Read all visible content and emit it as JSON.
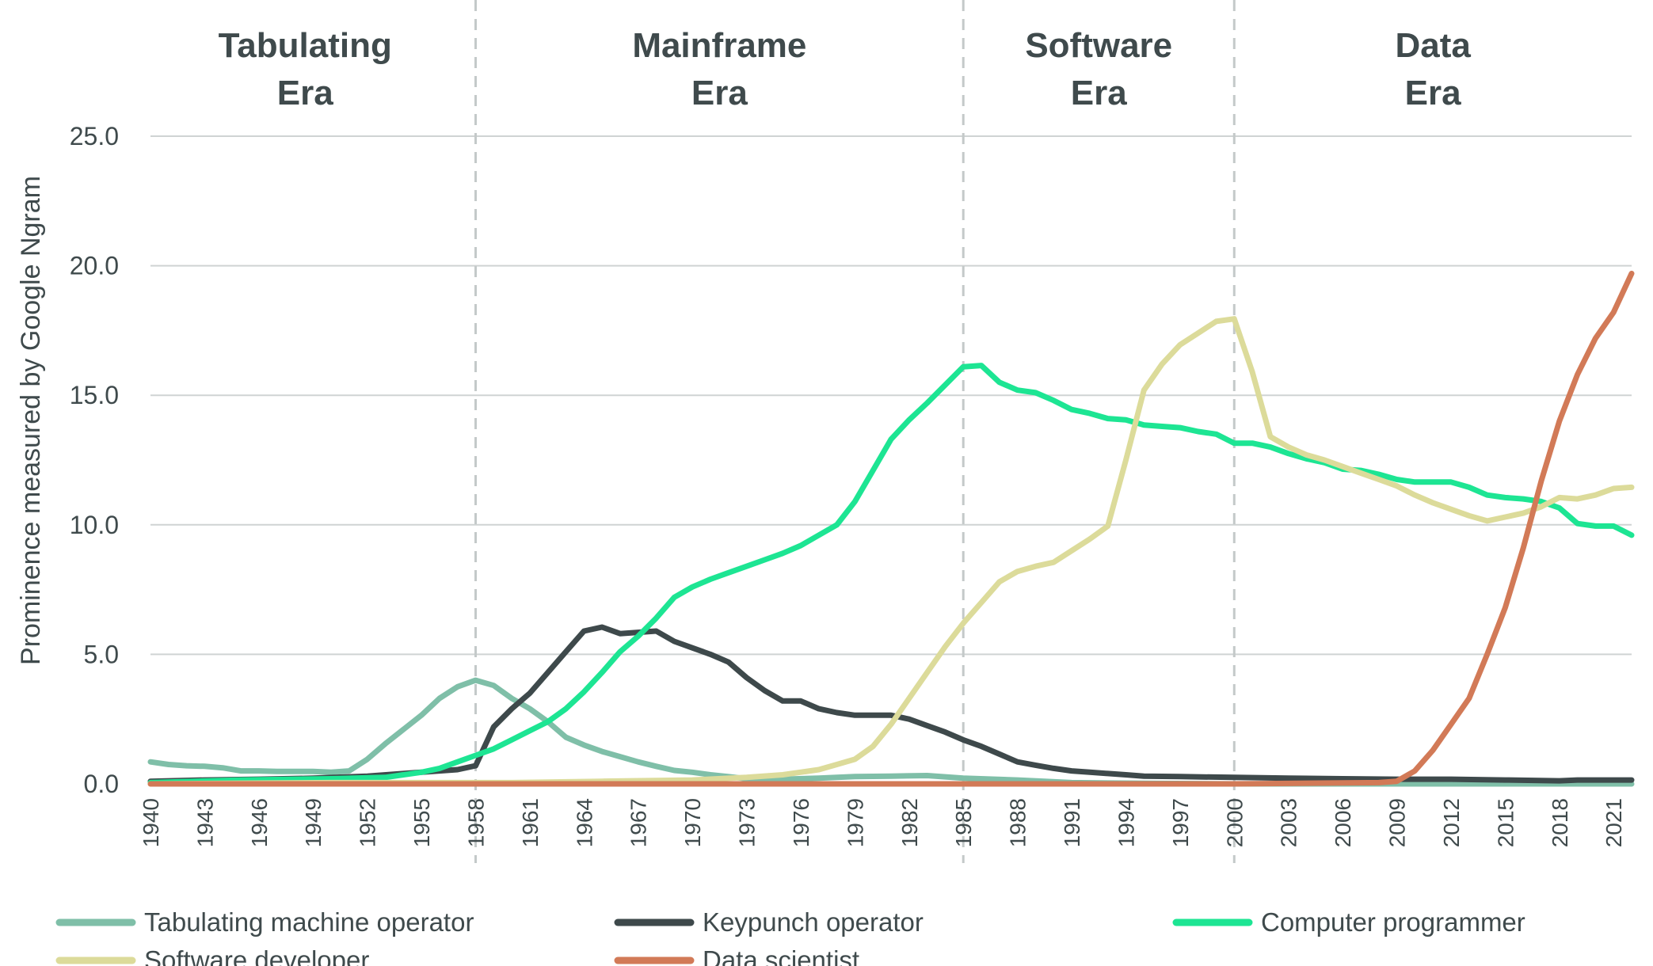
{
  "chart_data": {
    "type": "line",
    "title": "",
    "xlabel": "",
    "ylabel": "Prominence measured by Google Ngram",
    "xlim": [
      1940,
      2022
    ],
    "ylim": [
      0,
      25
    ],
    "yticks": [
      0,
      5,
      10,
      15,
      20,
      25
    ],
    "ytick_labels": [
      "0.0",
      "5.0",
      "10.0",
      "15.0",
      "20.0",
      "25.0"
    ],
    "xticks": [
      1940,
      1943,
      1946,
      1949,
      1952,
      1955,
      1958,
      1961,
      1964,
      1967,
      1970,
      1973,
      1976,
      1979,
      1982,
      1985,
      1988,
      1991,
      1994,
      1997,
      2000,
      2003,
      2006,
      2009,
      2012,
      2015,
      2018,
      2021
    ],
    "xtick_labels": [
      "1940",
      "1943",
      "1946",
      "1949",
      "1952",
      "1955",
      "1958",
      "1961",
      "1964",
      "1967",
      "1970",
      "1973",
      "1976",
      "1979",
      "1982",
      "1985",
      "1988",
      "1991",
      "1994",
      "1997",
      "2000",
      "2003",
      "2006",
      "2009",
      "2012",
      "2015",
      "2018",
      "2021"
    ],
    "grid": true,
    "legend_position": "bottom",
    "eras": [
      {
        "line1": "Tabulating",
        "line2": "Era",
        "start": 1940,
        "end": 1958
      },
      {
        "line1": "Mainframe",
        "line2": "Era",
        "start": 1958,
        "end": 1985
      },
      {
        "line1": "Software",
        "line2": "Era",
        "start": 1985,
        "end": 2000
      },
      {
        "line1": "Data",
        "line2": "Era",
        "start": 2000,
        "end": 2022
      }
    ],
    "series": [
      {
        "name": "Tabulating machine operator",
        "color": "#7fbfa8",
        "points": [
          [
            1940,
            0.85
          ],
          [
            1941,
            0.75
          ],
          [
            1942,
            0.7
          ],
          [
            1943,
            0.68
          ],
          [
            1944,
            0.62
          ],
          [
            1945,
            0.5
          ],
          [
            1946,
            0.5
          ],
          [
            1947,
            0.48
          ],
          [
            1948,
            0.48
          ],
          [
            1949,
            0.48
          ],
          [
            1950,
            0.45
          ],
          [
            1951,
            0.5
          ],
          [
            1952,
            0.95
          ],
          [
            1953,
            1.55
          ],
          [
            1954,
            2.1
          ],
          [
            1955,
            2.65
          ],
          [
            1956,
            3.3
          ],
          [
            1957,
            3.75
          ],
          [
            1958,
            4.0
          ],
          [
            1959,
            3.8
          ],
          [
            1960,
            3.3
          ],
          [
            1961,
            2.9
          ],
          [
            1962,
            2.4
          ],
          [
            1963,
            1.8
          ],
          [
            1964,
            1.5
          ],
          [
            1965,
            1.25
          ],
          [
            1966,
            1.05
          ],
          [
            1967,
            0.85
          ],
          [
            1968,
            0.68
          ],
          [
            1969,
            0.52
          ],
          [
            1970,
            0.45
          ],
          [
            1971,
            0.35
          ],
          [
            1972,
            0.28
          ],
          [
            1973,
            0.2
          ],
          [
            1975,
            0.18
          ],
          [
            1977,
            0.22
          ],
          [
            1979,
            0.28
          ],
          [
            1981,
            0.3
          ],
          [
            1983,
            0.32
          ],
          [
            1985,
            0.22
          ],
          [
            1988,
            0.15
          ],
          [
            1991,
            0.05
          ],
          [
            1995,
            0.02
          ],
          [
            2000,
            0.0
          ],
          [
            2010,
            0.0
          ],
          [
            2022,
            0.0
          ]
        ]
      },
      {
        "name": "Keypunch operator",
        "color": "#3e494b",
        "points": [
          [
            1940,
            0.1
          ],
          [
            1943,
            0.15
          ],
          [
            1946,
            0.18
          ],
          [
            1949,
            0.22
          ],
          [
            1952,
            0.3
          ],
          [
            1954,
            0.4
          ],
          [
            1956,
            0.5
          ],
          [
            1957,
            0.55
          ],
          [
            1958,
            0.7
          ],
          [
            1959,
            2.2
          ],
          [
            1960,
            2.9
          ],
          [
            1961,
            3.5
          ],
          [
            1962,
            4.3
          ],
          [
            1963,
            5.1
          ],
          [
            1964,
            5.9
          ],
          [
            1965,
            6.05
          ],
          [
            1966,
            5.8
          ],
          [
            1967,
            5.85
          ],
          [
            1968,
            5.9
          ],
          [
            1969,
            5.5
          ],
          [
            1970,
            5.25
          ],
          [
            1971,
            5.0
          ],
          [
            1972,
            4.7
          ],
          [
            1973,
            4.1
          ],
          [
            1974,
            3.6
          ],
          [
            1975,
            3.2
          ],
          [
            1976,
            3.2
          ],
          [
            1977,
            2.9
          ],
          [
            1978,
            2.75
          ],
          [
            1979,
            2.65
          ],
          [
            1980,
            2.65
          ],
          [
            1981,
            2.65
          ],
          [
            1982,
            2.5
          ],
          [
            1983,
            2.25
          ],
          [
            1984,
            2.0
          ],
          [
            1985,
            1.7
          ],
          [
            1986,
            1.45
          ],
          [
            1987,
            1.15
          ],
          [
            1988,
            0.85
          ],
          [
            1989,
            0.72
          ],
          [
            1990,
            0.6
          ],
          [
            1991,
            0.5
          ],
          [
            1992,
            0.45
          ],
          [
            1993,
            0.4
          ],
          [
            1994,
            0.35
          ],
          [
            1995,
            0.3
          ],
          [
            1997,
            0.28
          ],
          [
            2000,
            0.25
          ],
          [
            2003,
            0.22
          ],
          [
            2006,
            0.2
          ],
          [
            2009,
            0.18
          ],
          [
            2012,
            0.18
          ],
          [
            2015,
            0.15
          ],
          [
            2018,
            0.12
          ],
          [
            2019,
            0.15
          ],
          [
            2022,
            0.15
          ]
        ]
      },
      {
        "name": "Computer programmer",
        "color": "#1de593",
        "points": [
          [
            1940,
            0.05
          ],
          [
            1945,
            0.15
          ],
          [
            1950,
            0.2
          ],
          [
            1953,
            0.25
          ],
          [
            1955,
            0.45
          ],
          [
            1956,
            0.6
          ],
          [
            1957,
            0.85
          ],
          [
            1958,
            1.1
          ],
          [
            1959,
            1.35
          ],
          [
            1960,
            1.7
          ],
          [
            1961,
            2.05
          ],
          [
            1962,
            2.4
          ],
          [
            1963,
            2.9
          ],
          [
            1964,
            3.55
          ],
          [
            1965,
            4.3
          ],
          [
            1966,
            5.1
          ],
          [
            1967,
            5.7
          ],
          [
            1968,
            6.4
          ],
          [
            1969,
            7.2
          ],
          [
            1970,
            7.6
          ],
          [
            1971,
            7.9
          ],
          [
            1972,
            8.15
          ],
          [
            1973,
            8.4
          ],
          [
            1974,
            8.65
          ],
          [
            1975,
            8.9
          ],
          [
            1976,
            9.2
          ],
          [
            1977,
            9.6
          ],
          [
            1978,
            10.0
          ],
          [
            1979,
            10.9
          ],
          [
            1980,
            12.1
          ],
          [
            1981,
            13.3
          ],
          [
            1982,
            14.05
          ],
          [
            1983,
            14.7
          ],
          [
            1984,
            15.4
          ],
          [
            1985,
            16.1
          ],
          [
            1986,
            16.15
          ],
          [
            1987,
            15.5
          ],
          [
            1988,
            15.2
          ],
          [
            1989,
            15.1
          ],
          [
            1990,
            14.8
          ],
          [
            1991,
            14.45
          ],
          [
            1992,
            14.3
          ],
          [
            1993,
            14.1
          ],
          [
            1994,
            14.05
          ],
          [
            1995,
            13.85
          ],
          [
            1996,
            13.8
          ],
          [
            1997,
            13.75
          ],
          [
            1998,
            13.6
          ],
          [
            1999,
            13.5
          ],
          [
            2000,
            13.15
          ],
          [
            2001,
            13.15
          ],
          [
            2002,
            13.0
          ],
          [
            2003,
            12.75
          ],
          [
            2004,
            12.55
          ],
          [
            2005,
            12.4
          ],
          [
            2006,
            12.15
          ],
          [
            2007,
            12.1
          ],
          [
            2008,
            11.95
          ],
          [
            2009,
            11.75
          ],
          [
            2010,
            11.65
          ],
          [
            2011,
            11.65
          ],
          [
            2012,
            11.65
          ],
          [
            2013,
            11.45
          ],
          [
            2014,
            11.15
          ],
          [
            2015,
            11.05
          ],
          [
            2016,
            11.0
          ],
          [
            2017,
            10.9
          ],
          [
            2018,
            10.65
          ],
          [
            2019,
            10.05
          ],
          [
            2020,
            9.95
          ],
          [
            2021,
            9.95
          ],
          [
            2022,
            9.6
          ]
        ]
      },
      {
        "name": "Software developer",
        "color": "#dcdb9a",
        "points": [
          [
            1940,
            0.0
          ],
          [
            1950,
            0.05
          ],
          [
            1960,
            0.05
          ],
          [
            1965,
            0.1
          ],
          [
            1970,
            0.15
          ],
          [
            1973,
            0.25
          ],
          [
            1975,
            0.35
          ],
          [
            1977,
            0.55
          ],
          [
            1978,
            0.75
          ],
          [
            1979,
            0.95
          ],
          [
            1980,
            1.45
          ],
          [
            1981,
            2.3
          ],
          [
            1982,
            3.3
          ],
          [
            1983,
            4.3
          ],
          [
            1984,
            5.3
          ],
          [
            1985,
            6.2
          ],
          [
            1986,
            7.0
          ],
          [
            1987,
            7.8
          ],
          [
            1988,
            8.2
          ],
          [
            1989,
            8.4
          ],
          [
            1990,
            8.55
          ],
          [
            1991,
            9.0
          ],
          [
            1992,
            9.45
          ],
          [
            1993,
            9.95
          ],
          [
            1994,
            12.5
          ],
          [
            1995,
            15.2
          ],
          [
            1996,
            16.2
          ],
          [
            1997,
            16.95
          ],
          [
            1998,
            17.4
          ],
          [
            1999,
            17.85
          ],
          [
            2000,
            17.95
          ],
          [
            2001,
            15.9
          ],
          [
            2002,
            13.4
          ],
          [
            2003,
            13.0
          ],
          [
            2004,
            12.7
          ],
          [
            2005,
            12.5
          ],
          [
            2006,
            12.25
          ],
          [
            2007,
            12.0
          ],
          [
            2008,
            11.75
          ],
          [
            2009,
            11.5
          ],
          [
            2010,
            11.15
          ],
          [
            2011,
            10.85
          ],
          [
            2012,
            10.6
          ],
          [
            2013,
            10.35
          ],
          [
            2014,
            10.15
          ],
          [
            2015,
            10.3
          ],
          [
            2016,
            10.45
          ],
          [
            2017,
            10.7
          ],
          [
            2018,
            11.05
          ],
          [
            2019,
            11.0
          ],
          [
            2020,
            11.15
          ],
          [
            2021,
            11.4
          ],
          [
            2022,
            11.45
          ]
        ]
      },
      {
        "name": "Data scientist",
        "color": "#d27a57",
        "points": [
          [
            1940,
            0.0
          ],
          [
            1950,
            0.0
          ],
          [
            1960,
            0.0
          ],
          [
            1970,
            0.0
          ],
          [
            1980,
            0.0
          ],
          [
            1990,
            0.0
          ],
          [
            2000,
            0.0
          ],
          [
            2008,
            0.05
          ],
          [
            2009,
            0.1
          ],
          [
            2010,
            0.5
          ],
          [
            2011,
            1.3
          ],
          [
            2012,
            2.3
          ],
          [
            2013,
            3.3
          ],
          [
            2014,
            5.0
          ],
          [
            2015,
            6.8
          ],
          [
            2016,
            9.1
          ],
          [
            2017,
            11.7
          ],
          [
            2018,
            14.0
          ],
          [
            2019,
            15.8
          ],
          [
            2020,
            17.2
          ],
          [
            2021,
            18.2
          ],
          [
            2022,
            19.7
          ]
        ]
      }
    ]
  }
}
